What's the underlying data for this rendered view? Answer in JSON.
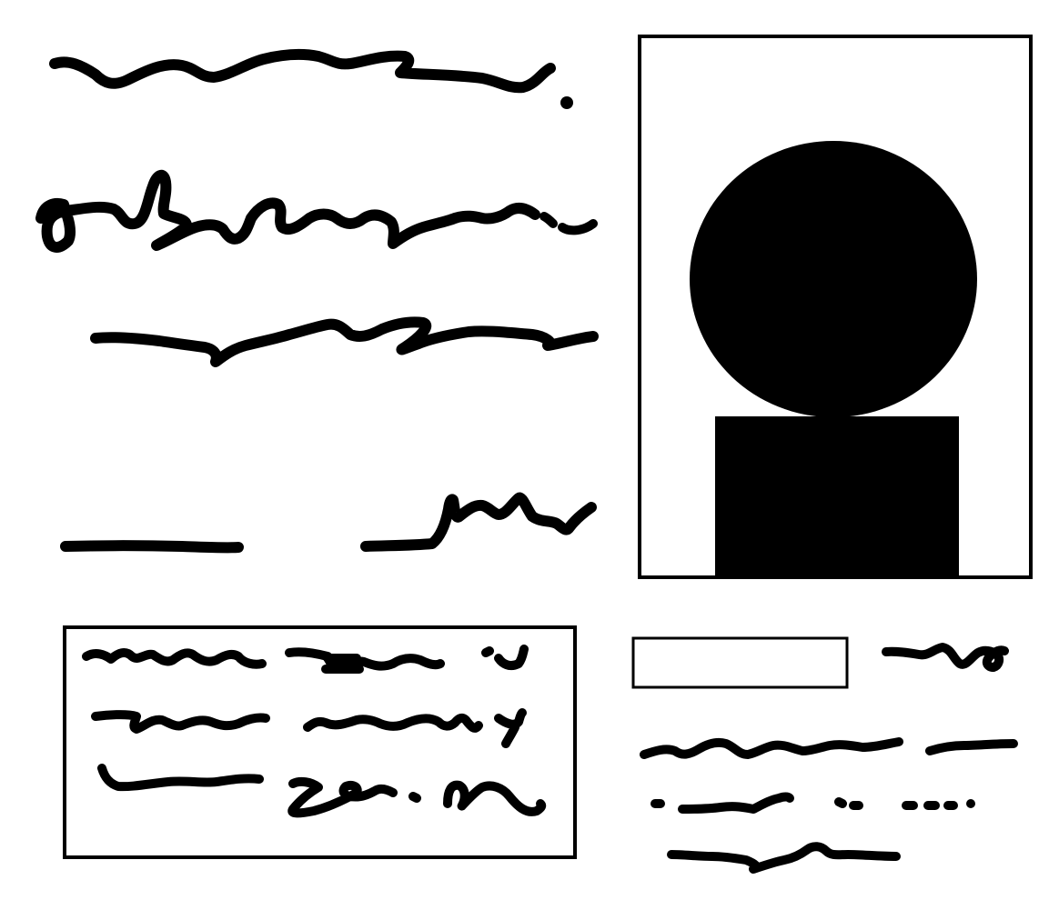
{
  "sketch": {
    "kind": "hand-drawn wireframe",
    "colors": {
      "ink": "#000000",
      "paper": "#ffffff"
    },
    "scribbles": {
      "title_line": "",
      "headline_line_1": "",
      "headline_line_2": "",
      "byline": "",
      "info_box_lines": [
        "",
        "",
        ""
      ],
      "field_label": "",
      "caption_lines": [
        "",
        "",
        ""
      ]
    },
    "image_placeholder": {
      "icon": "person-silhouette-icon"
    },
    "text_field": {
      "value": ""
    }
  }
}
